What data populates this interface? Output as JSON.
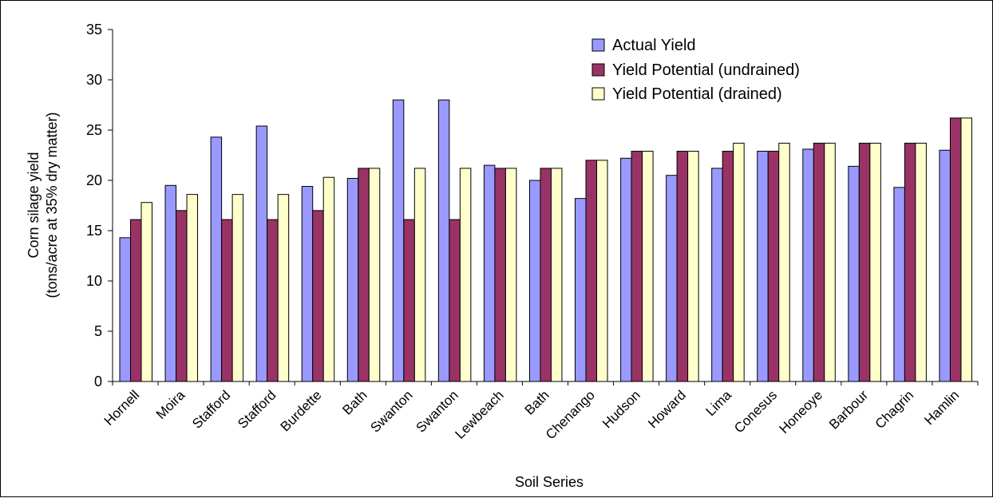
{
  "chart_data": {
    "type": "bar",
    "title": "",
    "xlabel": "Soil Series",
    "ylabel_lines": [
      "Corn silage yield",
      "(tons/acre at 35% dry matter)"
    ],
    "ylim": [
      0,
      35
    ],
    "yticks": [
      0,
      5,
      10,
      15,
      20,
      25,
      30,
      35
    ],
    "grid": false,
    "legend_position": "top-right",
    "categories": [
      "Hornell",
      "Moira",
      "Stafford",
      "Stafford",
      "Burdette",
      "Bath",
      "Swanton",
      "Swanton",
      "Lewbeach",
      "Bath",
      "Chenango",
      "Hudson",
      "Howard",
      "Lima",
      "Conesus",
      "Honeoye",
      "Barbour",
      "Chagrin",
      "Hamlin"
    ],
    "series": [
      {
        "name": "Actual Yield",
        "color": "#9999ff",
        "values": [
          14.3,
          19.5,
          24.3,
          25.4,
          19.4,
          20.2,
          28.0,
          28.0,
          21.5,
          20.0,
          18.2,
          22.2,
          20.5,
          21.2,
          22.9,
          23.1,
          21.4,
          19.3,
          23.0
        ]
      },
      {
        "name": "Yield Potential (undrained)",
        "color": "#993366",
        "values": [
          16.1,
          17.0,
          16.1,
          16.1,
          17.0,
          21.2,
          16.1,
          16.1,
          21.2,
          21.2,
          22.0,
          22.9,
          22.9,
          22.9,
          22.9,
          23.7,
          23.7,
          23.7,
          26.2
        ]
      },
      {
        "name": "Yield Potential (drained)",
        "color": "#ffffcc",
        "values": [
          17.8,
          18.6,
          18.6,
          18.6,
          20.3,
          21.2,
          21.2,
          21.2,
          21.2,
          21.2,
          22.0,
          22.9,
          22.9,
          23.7,
          23.7,
          23.7,
          23.7,
          23.7,
          26.2
        ]
      }
    ]
  }
}
